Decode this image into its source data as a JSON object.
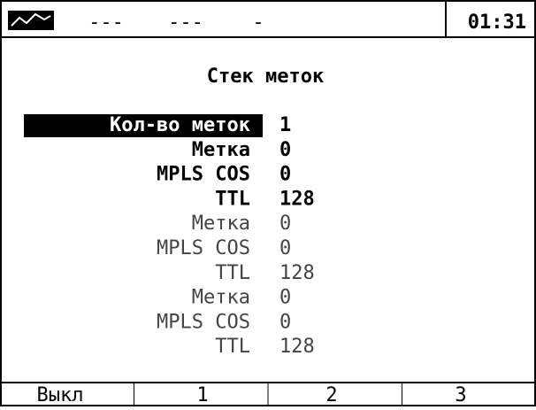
{
  "status": {
    "indicators": [
      "---",
      "---",
      "-"
    ],
    "time": "01:31"
  },
  "title": "Стек меток",
  "rows": [
    {
      "label": "Кол-во меток",
      "value": "1"
    },
    {
      "label": "Метка",
      "value": "0"
    },
    {
      "label": "MPLS COS",
      "value": "0"
    },
    {
      "label": "TTL",
      "value": "128"
    },
    {
      "label": "Метка",
      "value": "0"
    },
    {
      "label": "MPLS COS",
      "value": "0"
    },
    {
      "label": "TTL",
      "value": "128"
    },
    {
      "label": "Метка",
      "value": "0"
    },
    {
      "label": "MPLS COS",
      "value": "0"
    },
    {
      "label": "TTL",
      "value": "128"
    }
  ],
  "softkeys": [
    "Выкл",
    "1",
    "2",
    "3"
  ]
}
